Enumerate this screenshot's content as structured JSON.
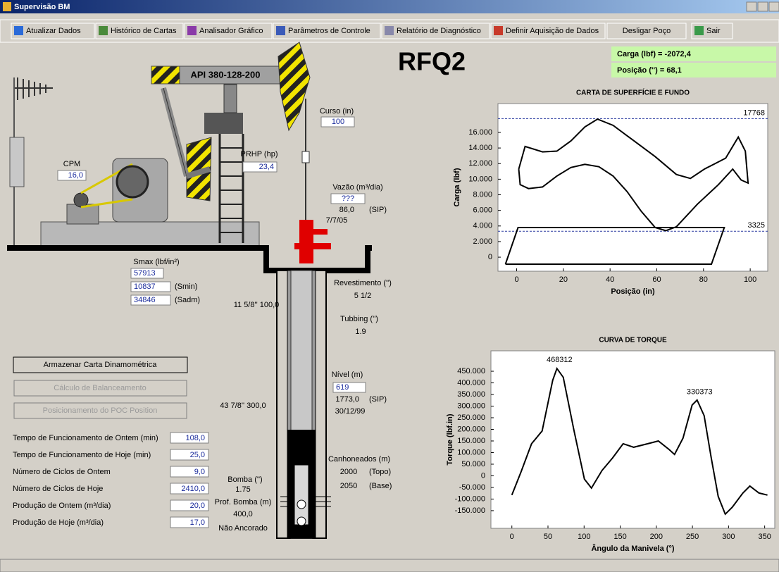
{
  "window": {
    "title": "Supervisão BM"
  },
  "toolbar": [
    "Atualizar Dados",
    "Histórico de Cartas",
    "Analisador Gráfico",
    "Parâmetros de Controle",
    "Relatório de Diagnóstico",
    "Definir Aquisição de Dados",
    "Desligar Poço",
    "Sair"
  ],
  "well": {
    "name": "RFQ2",
    "load_readout": "Carga (lbf) = -2072,4",
    "position_readout": "Posição ('') = 68,1"
  },
  "pump_jack": {
    "unit": "API 380-128-200",
    "cpm_label": "CPM",
    "cpm": "16,0",
    "prhp_label": "PRHP (hp)",
    "prhp": "23,4",
    "stroke_label": "Curso (in)",
    "stroke": "100"
  },
  "flow": {
    "label": "Vazão (m³/dia)",
    "value": "???",
    "sip": "86,0",
    "sip_tag": "(SIP)",
    "date": "7/7/05"
  },
  "stress": {
    "label": "Smax (lbf/in²)",
    "smax": "57913",
    "smin": "10837",
    "smin_tag": "(Smin)",
    "sadm": "34846",
    "sadm_tag": "(Sadm)"
  },
  "casing": {
    "top": "11 5/8'' 100,0",
    "bottom": "43 7/8'' 300,0",
    "label": "Revestimento ('')",
    "value": "5 1/2"
  },
  "tubing": {
    "label": "Tubbing ('')",
    "value": "1.9"
  },
  "level": {
    "label": "Nível (m)",
    "value": "619",
    "sip": "1773,0",
    "sip_tag": "(SIP)",
    "date": "30/12/99"
  },
  "perforations": {
    "label": "Canhoneados (m)",
    "top": "2000",
    "top_tag": "(Topo)",
    "base": "2050",
    "base_tag": "(Base)"
  },
  "pump": {
    "label": "Bomba ('')",
    "size": "1.75",
    "depth_label": "Prof. Bomba (m)",
    "depth": "400,0",
    "anchor": "Não Ancorado"
  },
  "buttons": [
    "Armazenar Carta Dinamométrica",
    "Cálculo de Balanceamento",
    "Posicionamento do POC Position"
  ],
  "stats": {
    "rows": [
      [
        "Tempo de Funcionamento de Ontem (min)",
        "108,0"
      ],
      [
        "Tempo de Funcionamento de Hoje (min)",
        "25,0"
      ],
      [
        "Número de Ciclos de Ontem",
        "9,0"
      ],
      [
        "Número de Ciclos de Hoje",
        "2410,0"
      ],
      [
        "Produção de Ontem (m³/dia)",
        "20,0"
      ],
      [
        "Produção de Hoje (m³/dia)",
        "17,0"
      ]
    ]
  },
  "chart_data": [
    {
      "type": "line",
      "title": "CARTA DE SUPERFÍCIE E FUNDO",
      "x_label": "Posição (in)",
      "y_label": "Carga (lbf)",
      "xlim": [
        -8,
        107.5
      ],
      "ylim": [
        -1800,
        19700
      ],
      "xticks": [
        0,
        20,
        40,
        60,
        80,
        100
      ],
      "yticks": [
        0,
        {
          "value": 2000,
          "label": "2.000"
        },
        {
          "value": 4000,
          "label": "4.000"
        },
        {
          "value": 6000,
          "label": "6.000"
        },
        {
          "value": 8000,
          "label": "8.000"
        },
        {
          "value": 10000,
          "label": "10.000"
        },
        {
          "value": 12000,
          "label": "12.000"
        },
        {
          "value": 14000,
          "label": "14.000"
        },
        {
          "value": 16000,
          "label": "16.000"
        }
      ],
      "reference_lines": [
        17768,
        3325
      ],
      "reference_color": "#2a3aa0",
      "series": [
        {
          "color": "#000000",
          "x": [
            0.9,
            3.6,
            11.1,
            17.2,
            23.2,
            29.2,
            34.6,
            41.3,
            50.3,
            59.3,
            68.4,
            74.4,
            80.4,
            89.5,
            94.9,
            97.9,
            99.1,
            96.1,
            92.5,
            86.4,
            77.4,
            68.4,
            63.9,
            59.3,
            53.3,
            47.3,
            41.3,
            35.2,
            29.2,
            23.2,
            17.2,
            11.1,
            5.1,
            1.5,
            0.9
          ],
          "values": [
            11300,
            14200,
            13500,
            13600,
            14900,
            16700,
            17700,
            16900,
            14900,
            12900,
            10600,
            10100,
            11300,
            12700,
            15400,
            13600,
            9500,
            9900,
            11300,
            9300,
            6800,
            3900,
            3400,
            3800,
            5900,
            8400,
            10400,
            11600,
            11900,
            11500,
            10400,
            9000,
            8800,
            9300,
            11300
          ]
        },
        {
          "color": "#000000",
          "x": [
            -4.8,
            0.6,
            88.9,
            83.4,
            -4.8
          ],
          "values": [
            -900,
            3800,
            3800,
            -900,
            -900
          ]
        }
      ]
    },
    {
      "type": "line",
      "title": "CURVA DE TORQUE",
      "x_label": "Ângulo da Manivela (°)",
      "y_label": "Torque (lbf.in)",
      "xlim": [
        -29,
        364
      ],
      "ylim": [
        -226000,
        538000
      ],
      "xticks": [
        0,
        50,
        100,
        150,
        200,
        250,
        300,
        350
      ],
      "yticks": [
        {
          "value": -150000,
          "label": "-150.000"
        },
        {
          "value": -100000,
          "label": "-100.000"
        },
        {
          "value": -50000,
          "label": "-50.000"
        },
        0,
        {
          "value": 50000,
          "label": "50.000"
        },
        {
          "value": 100000,
          "label": "100.000"
        },
        {
          "value": 150000,
          "label": "150.000"
        },
        {
          "value": 200000,
          "label": "200.000"
        },
        {
          "value": 250000,
          "label": "250.000"
        },
        {
          "value": 300000,
          "label": "300.000"
        },
        {
          "value": 350000,
          "label": "350.000"
        },
        {
          "value": 400000,
          "label": "400.000"
        },
        {
          "value": 450000,
          "label": "450.000"
        }
      ],
      "peaks": [
        {
          "x": 62,
          "y": 468312
        },
        {
          "x": 256,
          "y": 330373
        }
      ],
      "series": [
        {
          "color": "#000000",
          "x": [
            0,
            12.7,
            27.3,
            41.9,
            56.5,
            62.4,
            71.2,
            85.8,
            100.4,
            110.2,
            124.8,
            139.4,
            154,
            168.7,
            188.2,
            202.8,
            217.4,
            225.2,
            236.9,
            249.6,
            256.4,
            266.2,
            276,
            285.7,
            295.4,
            305.2,
            319.8,
            329.5,
            342.2,
            353.9
          ],
          "values": [
            -83000,
            17000,
            138000,
            193000,
            411000,
            462000,
            424000,
            198000,
            -14000,
            -53000,
            23000,
            77000,
            138000,
            123000,
            138000,
            150000,
            114000,
            92000,
            162000,
            305000,
            326000,
            259000,
            77000,
            -89000,
            -165000,
            -135000,
            -74000,
            -44000,
            -74000,
            -83000
          ]
        }
      ]
    }
  ]
}
